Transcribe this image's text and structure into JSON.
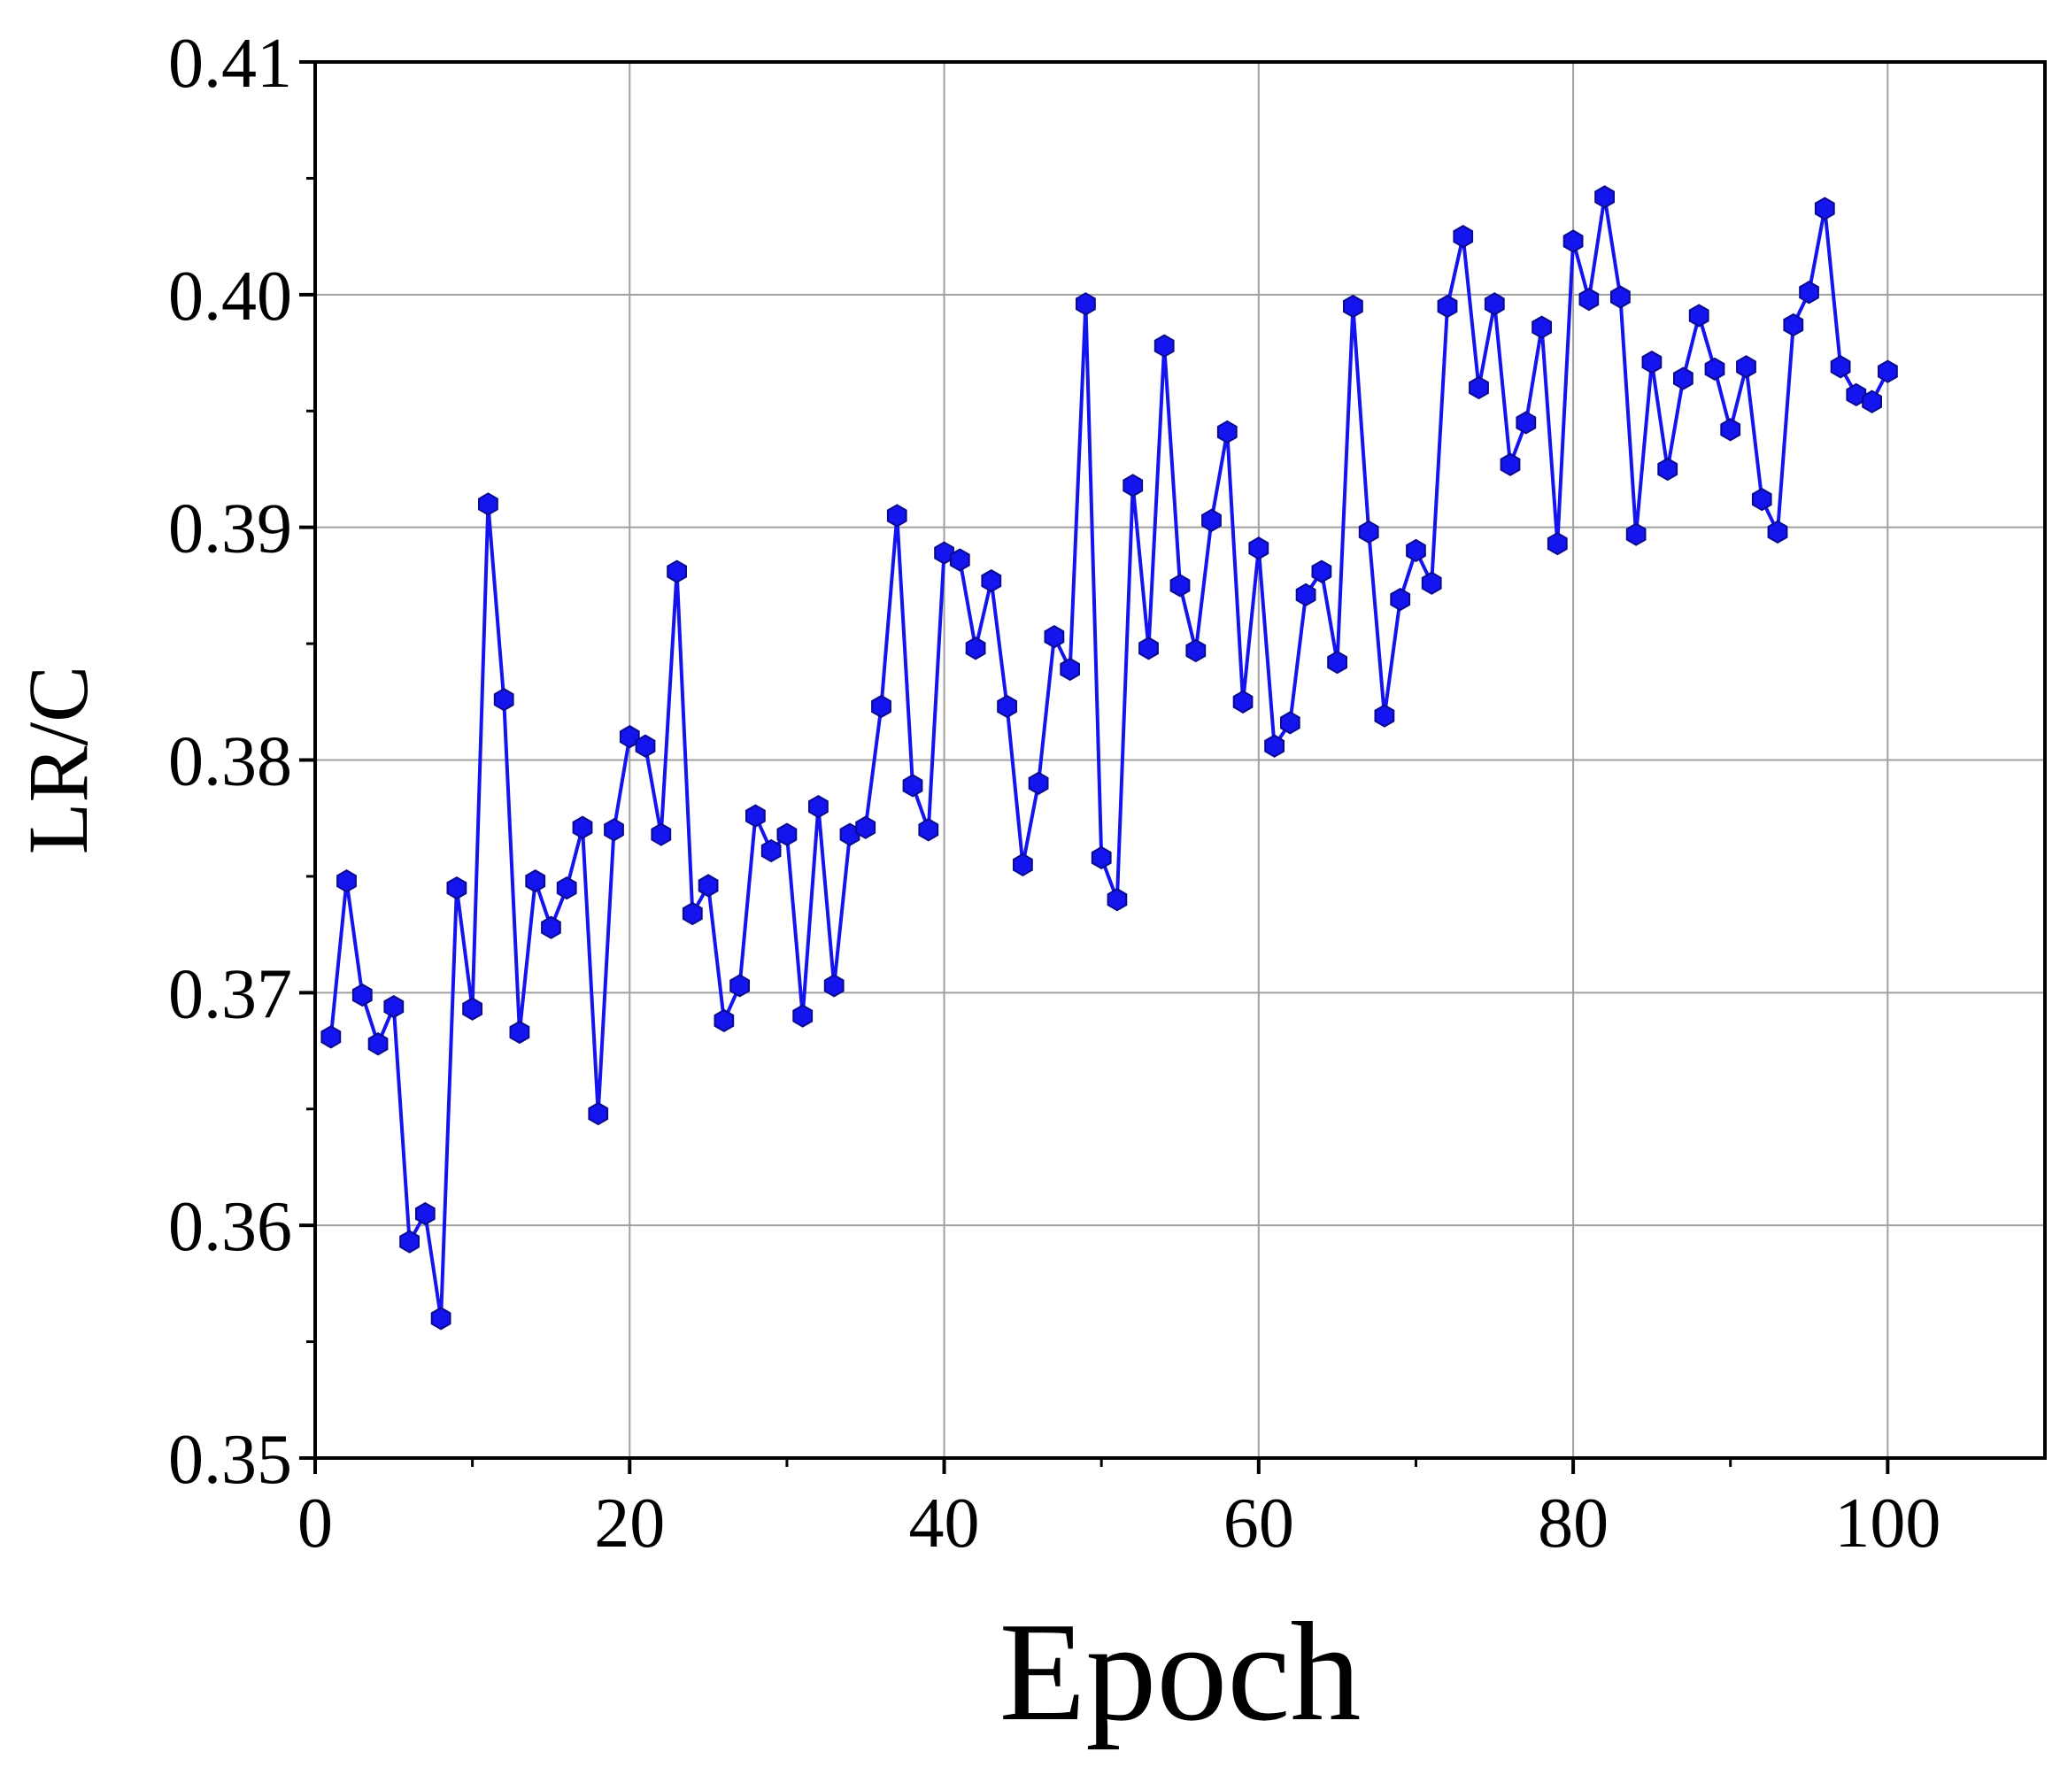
{
  "chart_data": {
    "type": "line",
    "title": "",
    "xlabel": "Epoch",
    "ylabel": "LR/C",
    "xlim": [
      0,
      110
    ],
    "ylim": [
      0.35,
      0.41
    ],
    "x_ticks": [
      0,
      20,
      40,
      60,
      80,
      100
    ],
    "x_tick_labels": [
      "0",
      "20",
      "40",
      "60",
      "80",
      "100"
    ],
    "y_ticks": [
      0.35,
      0.36,
      0.37,
      0.38,
      0.39,
      0.4,
      0.41
    ],
    "y_tick_labels": [
      "0.35",
      "0.36",
      "0.37",
      "0.38",
      "0.39",
      "0.40",
      "0.41"
    ],
    "grid": true,
    "legend": "none",
    "color": "#1414ee",
    "marker": "hexagon",
    "series": [
      {
        "x": [
          1,
          2,
          3,
          4,
          5,
          6,
          7,
          8,
          9,
          10,
          11,
          12,
          13,
          14,
          15,
          16,
          17,
          18,
          19,
          20,
          21,
          22,
          23,
          24,
          25,
          26,
          27,
          28,
          29,
          30,
          31,
          32,
          33,
          34,
          35,
          36,
          37,
          38,
          39,
          40,
          41,
          42,
          43,
          44,
          45,
          46,
          47,
          48,
          49,
          50,
          51,
          52,
          53,
          54,
          55,
          56,
          57,
          58,
          59,
          60,
          61,
          62,
          63,
          64,
          65,
          66,
          67,
          68,
          69,
          70,
          71,
          72,
          73,
          74,
          75,
          76,
          77,
          78,
          79,
          80,
          81,
          82,
          83,
          84,
          85,
          86,
          87,
          88,
          89,
          90,
          91,
          92,
          93,
          94,
          95,
          96,
          97,
          98,
          99,
          100
        ],
        "values": [
          0.3681,
          0.3748,
          0.3699,
          0.3678,
          0.3694,
          0.3593,
          0.3605,
          0.356,
          0.3745,
          0.3693,
          0.391,
          0.3826,
          0.3683,
          0.3748,
          0.3728,
          0.3745,
          0.3771,
          0.3648,
          0.377,
          0.381,
          0.3806,
          0.3768,
          0.3881,
          0.3734,
          0.3746,
          0.3688,
          0.3703,
          0.3776,
          0.3761,
          0.3768,
          0.369,
          0.378,
          0.3703,
          0.3768,
          0.3771,
          0.3823,
          0.3905,
          0.3789,
          0.377,
          0.3889,
          0.3886,
          0.3848,
          0.3877,
          0.3823,
          0.3755,
          0.379,
          0.3853,
          0.3839,
          0.3996,
          0.3758,
          0.374,
          0.3918,
          0.3848,
          0.3978,
          0.3875,
          0.3847,
          0.3903,
          0.3941,
          0.3825,
          0.3891,
          0.3806,
          0.3816,
          0.3871,
          0.3881,
          0.3842,
          0.3995,
          0.3898,
          0.3819,
          0.3869,
          0.389,
          0.3876,
          0.3995,
          0.4025,
          0.396,
          0.3996,
          0.3927,
          0.3945,
          0.3986,
          0.3893,
          0.4023,
          0.3998,
          0.4042,
          0.3999,
          0.3897,
          0.3971,
          0.3925,
          0.3964,
          0.3991,
          0.3968,
          0.3942,
          0.3969,
          0.3912,
          0.3898,
          0.3987,
          0.4001,
          0.4037,
          0.3969,
          0.3957,
          0.3954,
          0.3967
        ]
      }
    ]
  }
}
